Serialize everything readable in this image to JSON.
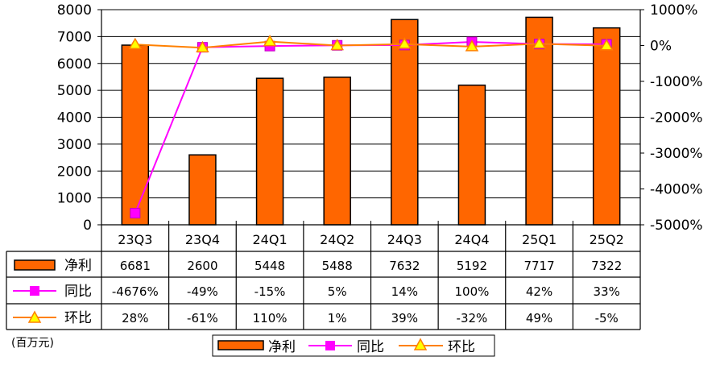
{
  "chart_data": {
    "type": "bar",
    "categories": [
      "23Q3",
      "23Q4",
      "24Q1",
      "24Q2",
      "24Q3",
      "24Q4",
      "25Q1",
      "25Q2"
    ],
    "series": [
      {
        "name": "净利",
        "type": "bar",
        "axis": "left",
        "values": [
          6681,
          2600,
          5448,
          5488,
          7632,
          5192,
          7717,
          7322
        ],
        "labels": [
          "6681",
          "2600",
          "5448",
          "5488",
          "7632",
          "5192",
          "7717",
          "7322"
        ],
        "color": "#ff6600"
      },
      {
        "name": "同比",
        "type": "line",
        "axis": "right",
        "marker": "square",
        "values": [
          -4676,
          -49,
          -15,
          5,
          14,
          100,
          42,
          33
        ],
        "labels": [
          "-4676%",
          "-49%",
          "-15%",
          "5%",
          "14%",
          "100%",
          "42%",
          "33%"
        ],
        "color": "#ff00ff"
      },
      {
        "name": "环比",
        "type": "line",
        "axis": "right",
        "marker": "triangle",
        "values": [
          28,
          -61,
          110,
          1,
          39,
          -32,
          49,
          -5
        ],
        "labels": [
          "28%",
          "-61%",
          "110%",
          "1%",
          "39%",
          "-32%",
          "49%",
          "-5%"
        ],
        "color": "#ff8000"
      }
    ],
    "left_axis": {
      "ylim": [
        0,
        8000
      ],
      "ticks": [
        "0",
        "1000",
        "2000",
        "3000",
        "4000",
        "5000",
        "6000",
        "7000",
        "8000"
      ]
    },
    "right_axis": {
      "ylim": [
        -5000,
        1000
      ],
      "ticks": [
        "1000%",
        "0%",
        "-1000%",
        "-2000%",
        "-3000%",
        "-4000%",
        "-5000%"
      ]
    },
    "unit": "(百万元)",
    "legend_position": "bottom",
    "grid": true
  }
}
